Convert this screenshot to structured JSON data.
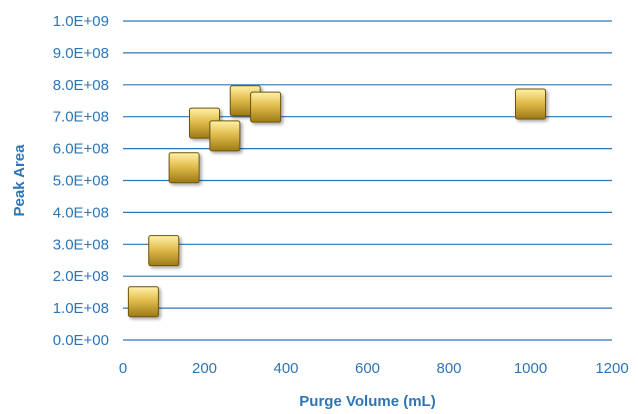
{
  "chart_data": {
    "type": "scatter",
    "title": "",
    "xlabel": "Purge Volume (mL)",
    "ylabel": "Peak Area",
    "xlim": [
      0,
      1200
    ],
    "ylim": [
      0,
      1000000000
    ],
    "x_ticks": [
      0,
      200,
      400,
      600,
      800,
      1000,
      1200
    ],
    "x_tick_labels": [
      "0",
      "200",
      "400",
      "600",
      "800",
      "1000",
      "1200"
    ],
    "y_ticks": [
      0,
      100000000,
      200000000,
      300000000,
      400000000,
      500000000,
      600000000,
      700000000,
      800000000,
      900000000,
      1000000000
    ],
    "y_tick_labels": [
      "0.0E+00",
      "1.0E+08",
      "2.0E+08",
      "3.0E+08",
      "4.0E+08",
      "5.0E+08",
      "6.0E+08",
      "7.0E+08",
      "8.0E+08",
      "9.0E+08",
      "1.0E+09"
    ],
    "grid": {
      "horizontal": true,
      "vertical": false
    },
    "legend": "none",
    "marker": "square",
    "colors": {
      "marker_light": "#fff2a8",
      "marker_mid": "#e2bd4e",
      "marker_dark": "#9c7a16",
      "marker_border": "#6b5410",
      "axis_text": "#2e75b6",
      "grid": "#2e75b6"
    },
    "series": [
      {
        "x": [
          50,
          100,
          150,
          200,
          250,
          300,
          350,
          1000
        ],
        "y": [
          120000000,
          280000000,
          540000000,
          680000000,
          640000000,
          750000000,
          730000000,
          740000000
        ]
      }
    ]
  }
}
